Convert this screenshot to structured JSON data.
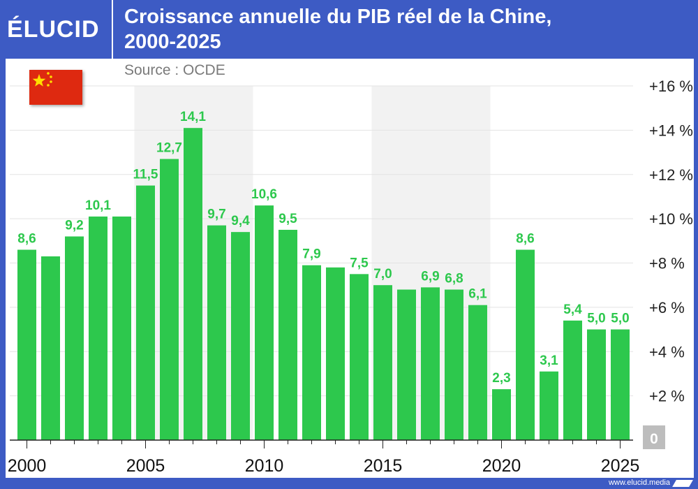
{
  "brand": {
    "logo_text": "ÉLUCID",
    "footer_url": "www.elucid.media"
  },
  "header": {
    "title_line1": "Croissance annuelle du PIB réel de la Chine,",
    "title_line2": "2000-2025"
  },
  "source": "Source : OCDE",
  "colors": {
    "header_bg": "#3d5bc4",
    "bar": "#2dc84d",
    "label": "#2dc84d",
    "band": "#f2f2f2",
    "grid": "#e3e3e3",
    "axis": "#222222",
    "zero_box": "#bdbdbd",
    "flag": "#de2910",
    "flag_star": "#ffde00"
  },
  "icons": {
    "flag": "china-flag-icon"
  },
  "chart_data": {
    "type": "bar",
    "title": "Croissance annuelle du PIB réel de la Chine, 2000-2025",
    "categories": [
      2000,
      2001,
      2002,
      2003,
      2004,
      2005,
      2006,
      2007,
      2008,
      2009,
      2010,
      2011,
      2012,
      2013,
      2014,
      2015,
      2016,
      2017,
      2018,
      2019,
      2020,
      2021,
      2022,
      2023,
      2024,
      2025
    ],
    "values": [
      8.6,
      8.3,
      9.2,
      10.1,
      10.1,
      11.5,
      12.7,
      14.1,
      9.7,
      9.4,
      10.6,
      9.5,
      7.9,
      7.8,
      7.5,
      7.0,
      6.8,
      6.9,
      6.8,
      6.1,
      2.3,
      8.6,
      3.1,
      5.4,
      5.0,
      5.0
    ],
    "data_labels": [
      "8,6",
      "",
      "9,2",
      "10,1",
      "",
      "11,5",
      "12,7",
      "14,1",
      "9,7",
      "9,4",
      "10,6",
      "9,5",
      "7,9",
      "",
      "7,5",
      "7,0",
      "",
      "6,9",
      "6,8",
      "6,1",
      "2,3",
      "8,6",
      "3,1",
      "5,4",
      "5,0",
      "5,0"
    ],
    "x_ticks": [
      "2000",
      "2005",
      "2010",
      "2015",
      "2020",
      "2025"
    ],
    "y_ticks": [
      "0",
      "+2 %",
      "+4 %",
      "+6 %",
      "+8 %",
      "+10 %",
      "+12 %",
      "+14 %",
      "+16 %"
    ],
    "ylim": [
      0,
      16
    ],
    "grid": true,
    "y_axis_position": "right"
  }
}
